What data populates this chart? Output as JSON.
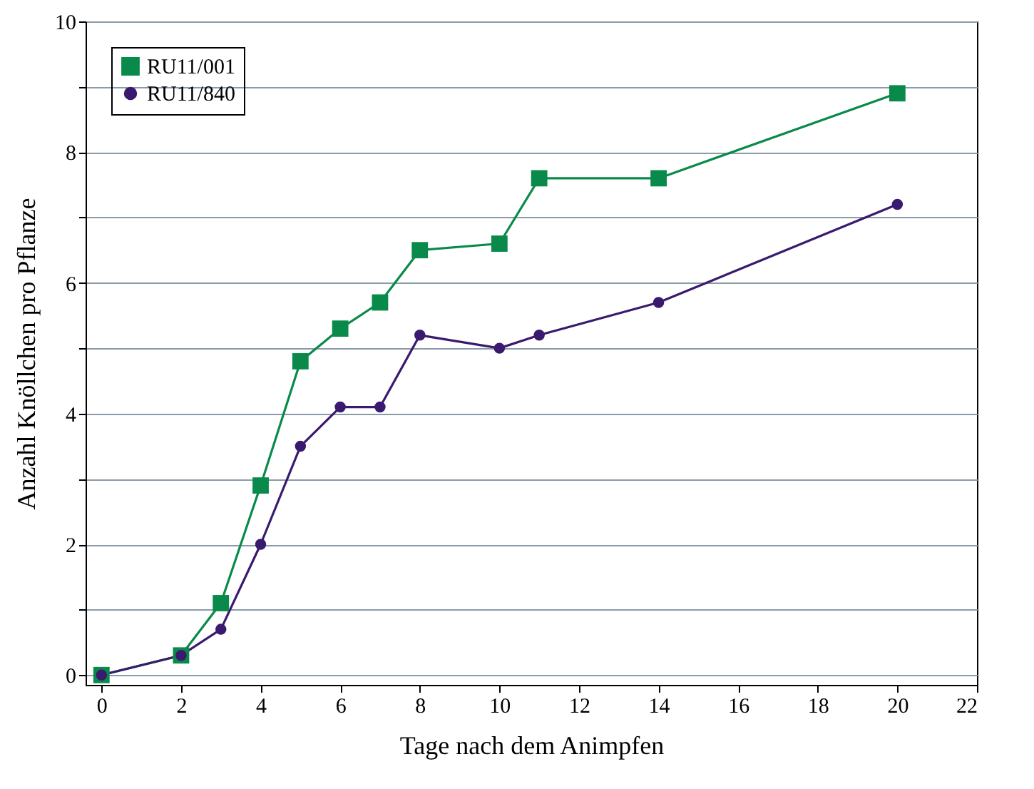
{
  "chart_data": {
    "type": "line",
    "xlabel": "Tage nach dem Animpfen",
    "ylabel": "Anzahl Knöllchen pro Pflanze",
    "xlim": [
      -0.4,
      22
    ],
    "xticks": [
      0,
      2,
      4,
      6,
      8,
      10,
      12,
      14,
      16,
      18,
      20,
      22
    ],
    "ylim": [
      -0.15,
      10
    ],
    "yticks": [
      0,
      {
        "value": 1,
        "label": null
      },
      2,
      {
        "value": 3,
        "label": null
      },
      4,
      {
        "value": 5,
        "label": null
      },
      6,
      {
        "value": 7,
        "label": null
      },
      8,
      {
        "value": 9,
        "label": null
      },
      10
    ],
    "grid": "y",
    "legend": "top left",
    "series": [
      {
        "name": "RU11/001",
        "color": "#0a8a4a",
        "marker": "square",
        "x": [
          0,
          2,
          3,
          4,
          5,
          6,
          7,
          8,
          10,
          11,
          14,
          20
        ],
        "values": [
          0,
          0.3,
          1.1,
          2.9,
          4.8,
          5.3,
          5.7,
          6.5,
          6.6,
          7.6,
          7.6,
          8.9
        ]
      },
      {
        "name": "RU11/840",
        "color": "#3a1a6e",
        "marker": "circle",
        "x": [
          0,
          2,
          3,
          4,
          5,
          6,
          7,
          8,
          10,
          11,
          14,
          20
        ],
        "values": [
          0,
          0.3,
          0.7,
          2.0,
          3.5,
          4.1,
          4.1,
          5.2,
          5.0,
          5.2,
          5.7,
          7.2
        ]
      }
    ]
  }
}
